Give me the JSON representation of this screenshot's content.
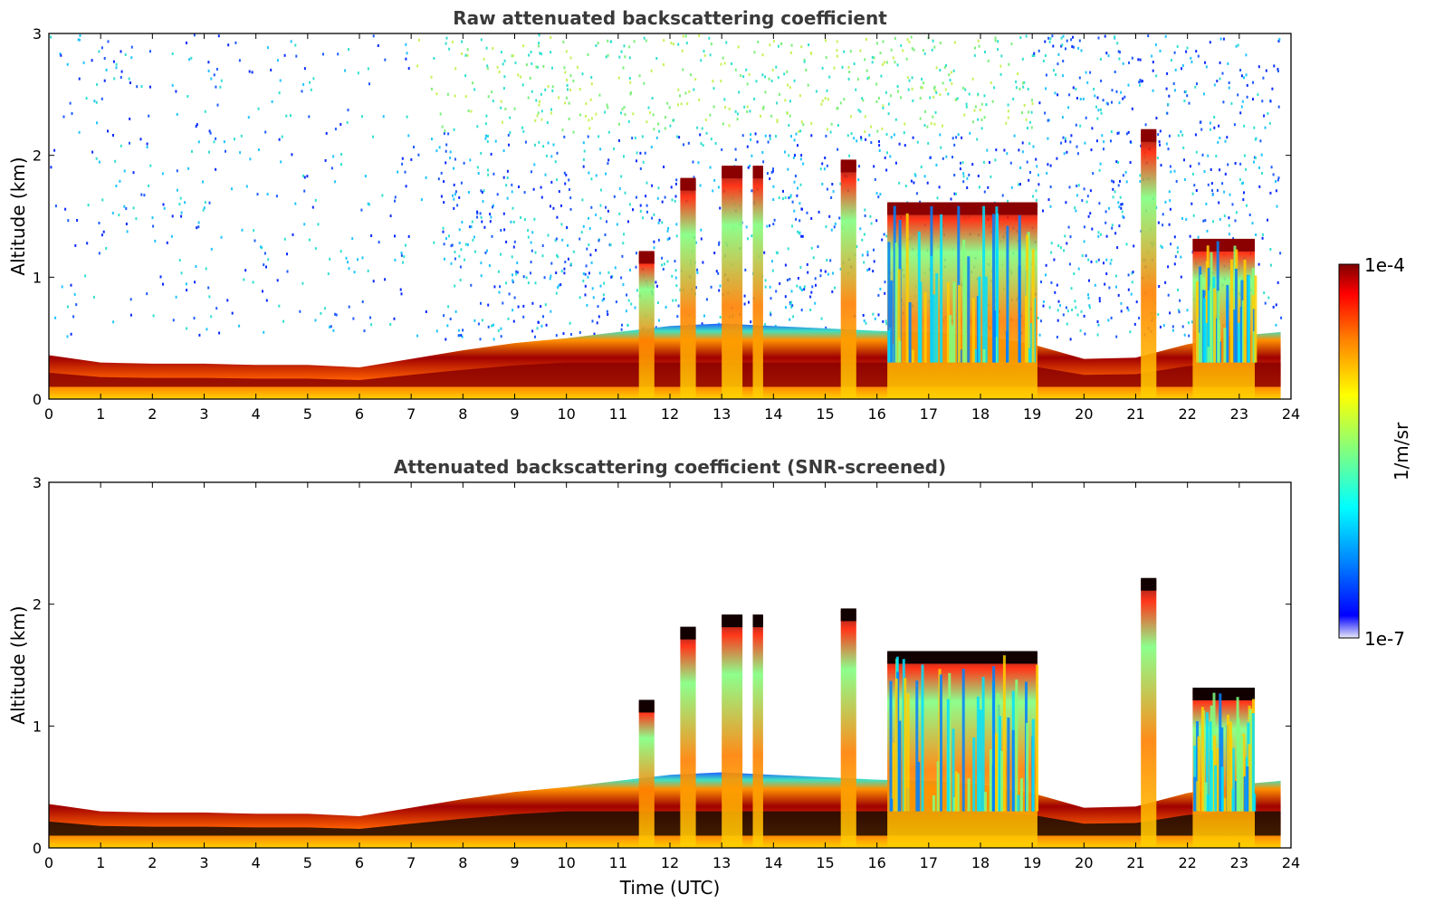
{
  "chart_data": [
    {
      "type": "heatmap",
      "title": "Raw attenuated backscattering coefficient",
      "xlabel": "",
      "ylabel": "Altitude (km)",
      "xlim": [
        0,
        24
      ],
      "ylim": [
        0,
        3
      ],
      "xticks": [
        0,
        1,
        2,
        3,
        4,
        5,
        6,
        7,
        8,
        9,
        10,
        11,
        12,
        13,
        14,
        15,
        16,
        17,
        18,
        19,
        20,
        21,
        22,
        23,
        24
      ],
      "yticks": [
        0,
        1,
        2,
        3
      ],
      "layer_top_km": [
        [
          0,
          0.36
        ],
        [
          1,
          0.3
        ],
        [
          2,
          0.29
        ],
        [
          3,
          0.29
        ],
        [
          4,
          0.28
        ],
        [
          5,
          0.28
        ],
        [
          6,
          0.26
        ],
        [
          7,
          0.33
        ],
        [
          8,
          0.4
        ],
        [
          9,
          0.46
        ],
        [
          10,
          0.5
        ],
        [
          11,
          0.55
        ],
        [
          12,
          0.6
        ],
        [
          13,
          0.62
        ],
        [
          14,
          0.6
        ],
        [
          15,
          0.58
        ],
        [
          16,
          0.56
        ],
        [
          17,
          0.55
        ],
        [
          18,
          0.52
        ],
        [
          19,
          0.45
        ],
        [
          20,
          0.33
        ],
        [
          21,
          0.34
        ],
        [
          22,
          0.45
        ],
        [
          23,
          0.52
        ],
        [
          23.8,
          0.55
        ]
      ],
      "clouds": [
        {
          "x": [
            11.4,
            11.7
          ],
          "top_km": 1.2
        },
        {
          "x": [
            12.2,
            12.5
          ],
          "top_km": 1.8
        },
        {
          "x": [
            13.0,
            13.4
          ],
          "top_km": 1.9
        },
        {
          "x": [
            13.6,
            13.8
          ],
          "top_km": 1.9
        },
        {
          "x": [
            15.3,
            15.6
          ],
          "top_km": 1.95
        },
        {
          "x": [
            16.2,
            19.1
          ],
          "top_km": 1.6
        },
        {
          "x": [
            21.1,
            21.4
          ],
          "top_km": 2.2
        },
        {
          "x": [
            22.1,
            23.3
          ],
          "top_km": 1.3
        }
      ],
      "noise_region": {
        "y_from_km": 0.5,
        "y_to_km": 3.0,
        "level": "low"
      }
    },
    {
      "type": "heatmap",
      "title": "Attenuated backscattering coefficient (SNR-screened)",
      "xlabel": "Time (UTC)",
      "ylabel": "Altitude (km)",
      "xlim": [
        0,
        24
      ],
      "ylim": [
        0,
        3
      ],
      "xticks": [
        0,
        1,
        2,
        3,
        4,
        5,
        6,
        7,
        8,
        9,
        10,
        11,
        12,
        13,
        14,
        15,
        16,
        17,
        18,
        19,
        20,
        21,
        22,
        23,
        24
      ],
      "yticks": [
        0,
        1,
        2,
        3
      ],
      "layer_top_km": [
        [
          0,
          0.36
        ],
        [
          1,
          0.3
        ],
        [
          2,
          0.29
        ],
        [
          3,
          0.29
        ],
        [
          4,
          0.28
        ],
        [
          5,
          0.28
        ],
        [
          6,
          0.26
        ],
        [
          7,
          0.33
        ],
        [
          8,
          0.4
        ],
        [
          9,
          0.46
        ],
        [
          10,
          0.5
        ],
        [
          11,
          0.55
        ],
        [
          12,
          0.6
        ],
        [
          13,
          0.62
        ],
        [
          14,
          0.6
        ],
        [
          15,
          0.58
        ],
        [
          16,
          0.56
        ],
        [
          17,
          0.55
        ],
        [
          18,
          0.52
        ],
        [
          19,
          0.45
        ],
        [
          20,
          0.33
        ],
        [
          21,
          0.34
        ],
        [
          22,
          0.45
        ],
        [
          23,
          0.52
        ],
        [
          23.8,
          0.55
        ]
      ],
      "clouds": [
        {
          "x": [
            11.4,
            11.7
          ],
          "top_km": 1.2
        },
        {
          "x": [
            12.2,
            12.5
          ],
          "top_km": 1.8
        },
        {
          "x": [
            13.0,
            13.4
          ],
          "top_km": 1.9
        },
        {
          "x": [
            13.6,
            13.8
          ],
          "top_km": 1.9
        },
        {
          "x": [
            15.3,
            15.6
          ],
          "top_km": 1.95
        },
        {
          "x": [
            16.2,
            19.1
          ],
          "top_km": 1.6
        },
        {
          "x": [
            21.1,
            21.4
          ],
          "top_km": 2.2
        },
        {
          "x": [
            22.1,
            23.3
          ],
          "top_km": 1.3
        }
      ],
      "noise_region": null
    }
  ],
  "colorbar": {
    "label": "1/m/sr",
    "max_label": "1e-4",
    "min_label": "1e-7",
    "colormap": "jet",
    "stops": [
      "#e8e8f8",
      "#0000ff",
      "#0080ff",
      "#00ffff",
      "#80ff80",
      "#ffff00",
      "#ff8000",
      "#ff0000",
      "#800000"
    ]
  }
}
